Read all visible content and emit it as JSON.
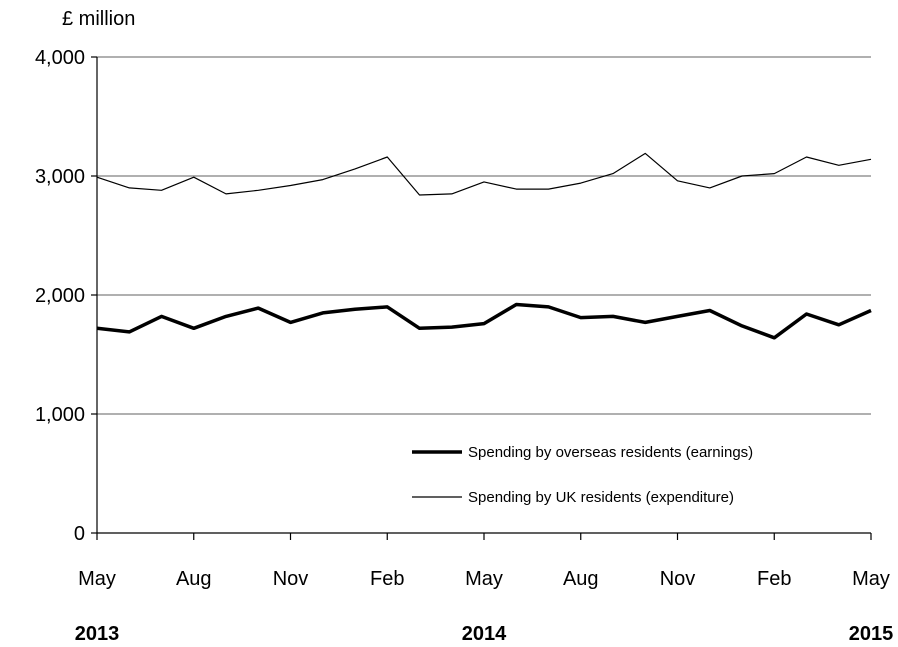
{
  "chart_data": {
    "type": "line",
    "title": "",
    "ylabel": "£ million",
    "xlabel": "",
    "ylim": [
      0,
      4000
    ],
    "yticks": [
      0,
      1000,
      2000,
      3000,
      4000
    ],
    "ytick_labels": [
      "0",
      "1,000",
      "2,000",
      "3,000",
      "4,000"
    ],
    "grid": "horizontal",
    "legend_position": "bottom-right",
    "x": [
      "2013-05",
      "2013-06",
      "2013-07",
      "2013-08",
      "2013-09",
      "2013-10",
      "2013-11",
      "2013-12",
      "2014-01",
      "2014-02",
      "2014-03",
      "2014-04",
      "2014-05",
      "2014-06",
      "2014-07",
      "2014-08",
      "2014-09",
      "2014-10",
      "2014-11",
      "2014-12",
      "2015-01",
      "2015-02",
      "2015-03",
      "2015-04",
      "2015-05"
    ],
    "xtick_labels": [
      {
        "x": "2013-05",
        "label": "May"
      },
      {
        "x": "2013-08",
        "label": "Aug"
      },
      {
        "x": "2013-11",
        "label": "Nov"
      },
      {
        "x": "2014-02",
        "label": "Feb"
      },
      {
        "x": "2014-05",
        "label": "May"
      },
      {
        "x": "2014-08",
        "label": "Aug"
      },
      {
        "x": "2014-11",
        "label": "Nov"
      },
      {
        "x": "2015-02",
        "label": "Feb"
      },
      {
        "x": "2015-05",
        "label": "May"
      }
    ],
    "year_labels": [
      {
        "x": "2013-05",
        "label": "2013"
      },
      {
        "x": "2014-05",
        "label": "2014"
      },
      {
        "x": "2015-05",
        "label": "2015"
      }
    ],
    "series": [
      {
        "name": "Spending by overseas residents (earnings)",
        "color": "#000000",
        "style": "thick",
        "values": [
          1720,
          1690,
          1820,
          1720,
          1820,
          1890,
          1770,
          1850,
          1880,
          1900,
          1720,
          1730,
          1760,
          1920,
          1900,
          1810,
          1820,
          1770,
          1820,
          1870,
          1740,
          1640,
          1840,
          1750,
          1870
        ]
      },
      {
        "name": "Spending by UK residents (expenditure)",
        "color": "#000000",
        "style": "thin",
        "values": [
          2990,
          2900,
          2880,
          2990,
          2850,
          2880,
          2920,
          2970,
          3060,
          3160,
          2840,
          2850,
          2950,
          2890,
          2890,
          2940,
          3020,
          3190,
          2960,
          2900,
          3000,
          3020,
          3160,
          3090,
          3140
        ]
      }
    ]
  }
}
